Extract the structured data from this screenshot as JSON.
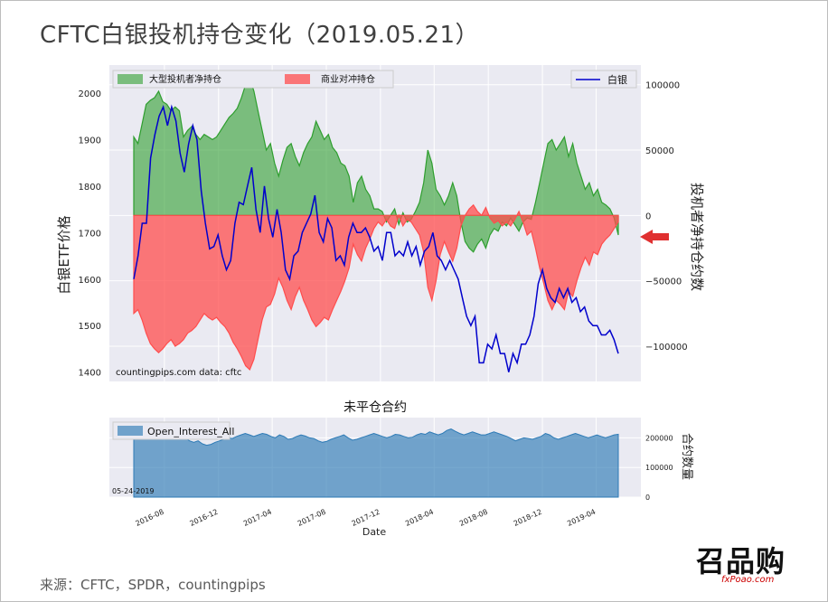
{
  "page": {
    "title": "CFTC白银投机持仓变化（2019.05.21）",
    "source": "来源：CFTC，SPDR，countingpips",
    "watermark": "召品购",
    "watermark_sub": "fxPoao.com"
  },
  "chart_data": [
    {
      "type": "area",
      "x_range": [
        "2016-05-24",
        "2019-05-21"
      ],
      "ylabel_left": "白银ETF价格",
      "ylim_left": [
        1380,
        2060
      ],
      "yticks_left": [
        1400,
        1500,
        1600,
        1700,
        1800,
        1900,
        2000
      ],
      "ylabel_right": "投机者净持仓约数",
      "ylim_right": [
        -127000,
        115000
      ],
      "yticks_right": [
        100000,
        50000,
        0,
        -50000,
        -100000
      ],
      "ytick_labels_right": [
        "100000",
        "50000",
        "0",
        "−50000",
        "−100000"
      ],
      "annotation": "countingpips.com    data: cftc",
      "legend": [
        "大型投机者净持仓",
        "商业对冲持仓",
        "白银"
      ],
      "colors": {
        "speculators": "#2e9e2e",
        "commercial": "#ff4d4d",
        "silver": "#0000cc",
        "arrow": "#e03030"
      },
      "series": [
        {
          "name": "大型投机者净持仓",
          "axis": "right",
          "values": [
            60000,
            55000,
            70000,
            85000,
            88000,
            90000,
            95000,
            87000,
            85000,
            80000,
            83000,
            80000,
            60000,
            65000,
            68000,
            62000,
            58000,
            62000,
            60000,
            58000,
            60000,
            65000,
            70000,
            75000,
            78000,
            82000,
            90000,
            100000,
            105000,
            95000,
            80000,
            65000,
            50000,
            55000,
            40000,
            30000,
            42000,
            52000,
            55000,
            45000,
            38000,
            48000,
            55000,
            60000,
            72000,
            65000,
            58000,
            62000,
            52000,
            48000,
            40000,
            38000,
            30000,
            10000,
            25000,
            30000,
            20000,
            15000,
            5000,
            5000,
            3000,
            -5000,
            0,
            5000,
            -7000,
            2000,
            -5000,
            -3000,
            3000,
            10000,
            25000,
            50000,
            40000,
            20000,
            15000,
            8000,
            15000,
            25000,
            15000,
            -5000,
            -20000,
            -25000,
            -28000,
            -22000,
            -18000,
            -25000,
            -15000,
            -10000,
            -12000,
            -5000,
            -8000,
            -2000,
            -7000,
            -12000,
            -5000,
            -2000,
            -3000,
            10000,
            25000,
            40000,
            55000,
            58000,
            50000,
            55000,
            60000,
            45000,
            55000,
            40000,
            30000,
            20000,
            25000,
            15000,
            20000,
            10000,
            8000,
            5000,
            -2000,
            -15000
          ]
        },
        {
          "name": "商业对冲持仓",
          "axis": "right",
          "values": [
            -75000,
            -72000,
            -80000,
            -90000,
            -98000,
            -102000,
            -105000,
            -102000,
            -98000,
            -95000,
            -100000,
            -98000,
            -95000,
            -90000,
            -88000,
            -85000,
            -80000,
            -75000,
            -78000,
            -80000,
            -78000,
            -82000,
            -85000,
            -90000,
            -97000,
            -102000,
            -108000,
            -115000,
            -118000,
            -110000,
            -95000,
            -80000,
            -70000,
            -68000,
            -60000,
            -48000,
            -55000,
            -65000,
            -72000,
            -62000,
            -55000,
            -65000,
            -72000,
            -80000,
            -85000,
            -82000,
            -78000,
            -80000,
            -72000,
            -65000,
            -58000,
            -50000,
            -40000,
            -22000,
            -30000,
            -35000,
            -25000,
            -18000,
            -10000,
            -5000,
            -8000,
            -3000,
            -8000,
            -10000,
            0,
            -8000,
            -3000,
            -5000,
            -10000,
            -15000,
            -28000,
            -55000,
            -65000,
            -50000,
            -30000,
            -20000,
            -28000,
            -35000,
            -25000,
            -8000,
            0,
            5000,
            8000,
            3000,
            0,
            6000,
            -2000,
            -6000,
            -4000,
            -8000,
            -5000,
            -8000,
            -3000,
            3000,
            -5000,
            -15000,
            -12000,
            -25000,
            -40000,
            -52000,
            -65000,
            -72000,
            -65000,
            -68000,
            -72000,
            -58000,
            -62000,
            -50000,
            -40000,
            -32000,
            -38000,
            -28000,
            -30000,
            -22000,
            -18000,
            -15000,
            -10000,
            -5000
          ]
        },
        {
          "name": "白银",
          "axis": "left",
          "values": [
            1600,
            1650,
            1720,
            1720,
            1860,
            1910,
            1950,
            1970,
            1930,
            1970,
            1940,
            1870,
            1830,
            1890,
            1930,
            1900,
            1790,
            1720,
            1665,
            1670,
            1695,
            1650,
            1620,
            1640,
            1720,
            1765,
            1760,
            1800,
            1840,
            1750,
            1700,
            1800,
            1730,
            1690,
            1750,
            1700,
            1620,
            1600,
            1650,
            1660,
            1700,
            1720,
            1740,
            1780,
            1700,
            1680,
            1730,
            1710,
            1640,
            1650,
            1630,
            1690,
            1720,
            1700,
            1700,
            1710,
            1690,
            1660,
            1670,
            1640,
            1700,
            1700,
            1650,
            1660,
            1650,
            1680,
            1650,
            1670,
            1630,
            1660,
            1670,
            1700,
            1650,
            1640,
            1620,
            1640,
            1620,
            1600,
            1560,
            1520,
            1500,
            1520,
            1420,
            1420,
            1460,
            1450,
            1480,
            1440,
            1440,
            1400,
            1440,
            1420,
            1460,
            1460,
            1480,
            1520,
            1590,
            1620,
            1580,
            1560,
            1550,
            1580,
            1560,
            1580,
            1550,
            1560,
            1530,
            1540,
            1510,
            1500,
            1500,
            1480,
            1480,
            1490,
            1470,
            1440
          ]
        }
      ]
    },
    {
      "type": "area",
      "title": "未平仓合约",
      "xlabel": "Date",
      "ylabel": "合约数量",
      "ylim": [
        0,
        250000
      ],
      "yticks": [
        0,
        100000,
        200000
      ],
      "xtick_labels": [
        "2016-08",
        "2016-12",
        "2017-04",
        "2017-08",
        "2017-12",
        "2018-04",
        "2018-08",
        "2018-12",
        "2019-04"
      ],
      "xtick_dates": [
        "2016-08-01",
        "2016-12-01",
        "2017-04-01",
        "2017-08-01",
        "2017-12-01",
        "2018-04-01",
        "2018-08-01",
        "2018-12-01",
        "2019-04-01"
      ],
      "annotation": "05-24-2019",
      "legend": [
        "Open_Interest_All"
      ],
      "color": "#2e7bb6",
      "series": [
        {
          "name": "Open_Interest_All",
          "values": [
            200000,
            205000,
            210000,
            215000,
            210000,
            202000,
            200000,
            195000,
            198000,
            205000,
            210000,
            208000,
            200000,
            190000,
            185000,
            190000,
            180000,
            175000,
            178000,
            185000,
            190000,
            195000,
            200000,
            198000,
            205000,
            210000,
            215000,
            210000,
            205000,
            210000,
            215000,
            212000,
            205000,
            200000,
            210000,
            205000,
            195000,
            198000,
            205000,
            210000,
            206000,
            200000,
            198000,
            190000,
            185000,
            188000,
            195000,
            200000,
            205000,
            210000,
            200000,
            192000,
            195000,
            200000,
            205000,
            210000,
            215000,
            210000,
            205000,
            200000,
            205000,
            212000,
            210000,
            205000,
            200000,
            202000,
            210000,
            215000,
            212000,
            220000,
            215000,
            210000,
            215000,
            225000,
            230000,
            222000,
            215000,
            210000,
            215000,
            220000,
            215000,
            210000,
            210000,
            215000,
            220000,
            215000,
            210000,
            205000,
            198000,
            190000,
            195000,
            200000,
            198000,
            195000,
            200000,
            205000,
            215000,
            210000,
            200000,
            195000,
            200000,
            205000,
            210000,
            215000,
            210000,
            205000,
            200000,
            205000,
            210000,
            205000,
            200000,
            205000,
            210000,
            212000
          ]
        }
      ]
    }
  ]
}
